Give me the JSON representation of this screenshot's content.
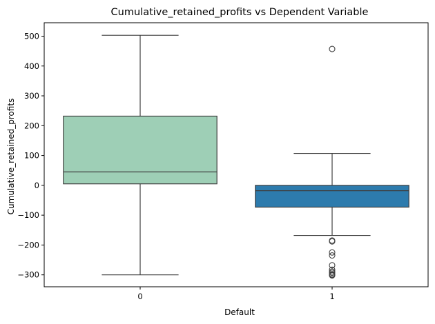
{
  "chart_data": {
    "type": "box",
    "title": "Cumulative_retained_profits vs Dependent Variable",
    "xlabel": "Default",
    "ylabel": "Cumulative_retained_profits",
    "ylim": [
      -340,
      545
    ],
    "yticks": [
      -300,
      -200,
      -100,
      0,
      100,
      200,
      300,
      400,
      500
    ],
    "grid": false,
    "categories": [
      "0",
      "1"
    ],
    "boxes": [
      {
        "category": "0",
        "whisker_low": -300,
        "q1": 5,
        "median": 45,
        "q3": 232,
        "whisker_high": 503,
        "outliers": [],
        "color": "#9ecfb6"
      },
      {
        "category": "1",
        "whisker_low": -168,
        "q1": -73,
        "median": -18,
        "q3": 0,
        "whisker_high": 107,
        "outliers": [
          457,
          -185,
          -188,
          -225,
          -235,
          -268,
          -283,
          -289,
          -293,
          -298,
          -300,
          -302
        ],
        "color": "#2d7bad"
      }
    ],
    "line_color": "#3f3f3f"
  }
}
